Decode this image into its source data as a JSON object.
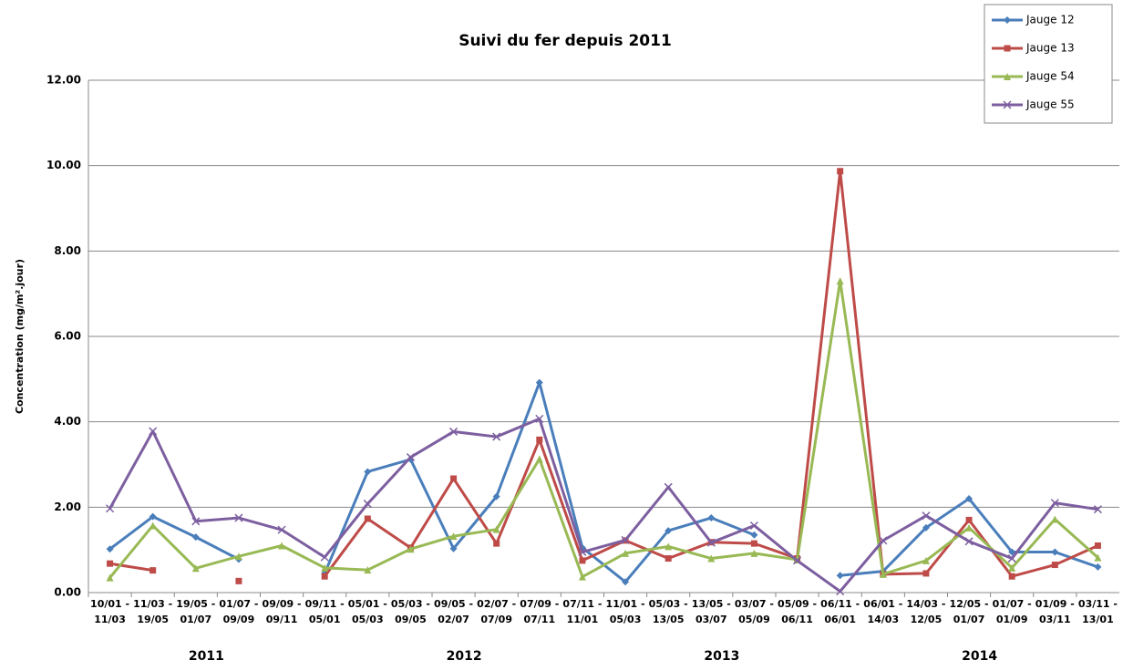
{
  "chart_data": {
    "type": "line",
    "title": "Suivi du fer depuis 2011",
    "y_label": "Concentration (mg/m².jour)",
    "categories": [
      "10/01 - 11/03",
      "11/03 - 19/05",
      "19/05 - 01/07",
      "01/07 - 09/09",
      "09/09 - 09/11",
      "09/11 - 05/01",
      "05/01 - 05/03",
      "05/03 - 09/05",
      "09/05 - 02/07",
      "02/07 - 07/09",
      "07/09 - 07/11",
      "07/11 - 11/01",
      "11/01 - 05/03",
      "05/03 - 13/05",
      "13/05 - 03/07",
      "03/07 - 05/09",
      "05/09 - 06/11",
      "06/11 - 06/01",
      "06/01 - 14/03",
      "14/03 - 12/05",
      "12/05 - 01/07",
      "01/07 - 01/09",
      "01/09 - 03/11",
      "03/11 - 13/01"
    ],
    "x_groups": [
      "2011",
      "2012",
      "2013",
      "2014"
    ],
    "series": [
      {
        "name": "Jauge 12",
        "color": "#4a7ebb",
        "marker": "diamond",
        "values": [
          1.02,
          1.78,
          1.3,
          0.78,
          null,
          0.45,
          2.83,
          3.12,
          1.03,
          2.25,
          4.92,
          1.05,
          0.25,
          1.45,
          1.75,
          1.35,
          null,
          0.4,
          0.5,
          1.52,
          2.2,
          0.95,
          0.95,
          0.6
        ]
      },
      {
        "name": "Jauge 13",
        "color": "#be4b48",
        "marker": "square",
        "values": [
          0.68,
          0.52,
          null,
          0.27,
          null,
          0.38,
          1.73,
          1.05,
          2.67,
          1.15,
          3.58,
          0.75,
          1.22,
          0.8,
          1.18,
          1.15,
          0.8,
          9.87,
          0.43,
          0.45,
          1.7,
          0.38,
          0.65,
          1.1
        ]
      },
      {
        "name": "Jauge 54",
        "color": "#98b954",
        "marker": "triangle",
        "values": [
          0.35,
          1.57,
          0.57,
          0.85,
          1.1,
          0.58,
          0.53,
          1.02,
          1.32,
          1.48,
          3.13,
          0.37,
          0.92,
          1.08,
          0.8,
          0.92,
          0.77,
          7.3,
          0.43,
          0.75,
          1.52,
          0.58,
          1.72,
          0.82
        ]
      },
      {
        "name": "Jauge 55",
        "color": "#7d5fa0",
        "marker": "x",
        "values": [
          1.97,
          3.78,
          1.67,
          1.75,
          1.47,
          0.83,
          2.08,
          3.17,
          3.77,
          3.65,
          4.07,
          0.95,
          1.23,
          2.47,
          1.17,
          1.57,
          0.75,
          0.03,
          1.22,
          1.8,
          1.2,
          0.8,
          2.1,
          1.95
        ]
      }
    ],
    "ylim": [
      0,
      12
    ],
    "yticks": [
      {
        "value": 0,
        "label": "0.00"
      },
      {
        "value": 2,
        "label": "2.00"
      },
      {
        "value": 4,
        "label": "4.00"
      },
      {
        "value": 6,
        "label": "6.00"
      },
      {
        "value": 8,
        "label": "8.00"
      },
      {
        "value": 10,
        "label": "10.00"
      },
      {
        "value": 12,
        "label": "12.00"
      }
    ],
    "grid": true,
    "legend": "top-right"
  }
}
